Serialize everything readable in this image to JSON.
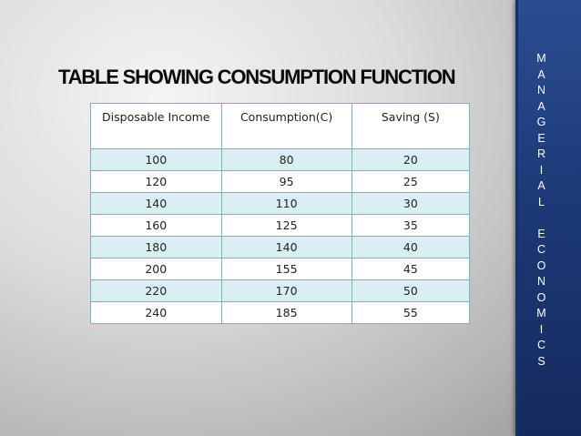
{
  "slide": {
    "title": "TABLE SHOWING CONSUMPTION FUNCTION",
    "sidebar_letters": [
      "M",
      "A",
      "N",
      "A",
      "G",
      "E",
      "R",
      "I",
      "A",
      "L",
      "",
      "E",
      "C",
      "O",
      "N",
      "O",
      "M",
      "I",
      "C",
      "S"
    ]
  },
  "table": {
    "headers": [
      "Disposable Income",
      "Consumption(C)",
      "Saving (S)"
    ],
    "rows": [
      [
        "100",
        "80",
        "20"
      ],
      [
        "120",
        "95",
        "25"
      ],
      [
        "140",
        "110",
        "30"
      ],
      [
        "160",
        "125",
        "35"
      ],
      [
        "180",
        "140",
        "40"
      ],
      [
        "200",
        "155",
        "45"
      ],
      [
        "220",
        "170",
        "50"
      ],
      [
        "240",
        "185",
        "55"
      ]
    ]
  },
  "colors": {
    "sidebar": "#1d3a78",
    "row_tint": "#d8f0f1",
    "border": "#6fb6bd"
  }
}
